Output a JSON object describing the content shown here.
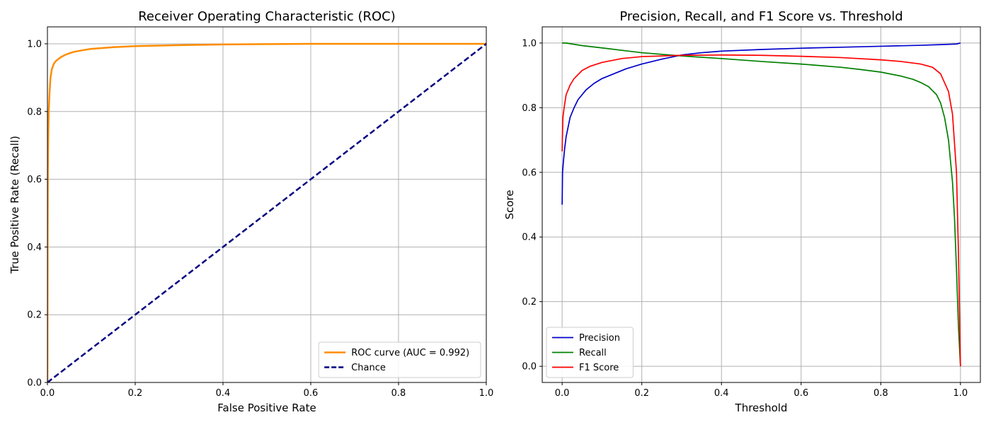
{
  "chart_data": [
    {
      "type": "line",
      "title": "Receiver Operating Characteristic (ROC)",
      "xlabel": "False Positive Rate",
      "ylabel": "True Positive Rate (Recall)",
      "xlim": [
        0,
        1
      ],
      "ylim": [
        0,
        1.05
      ],
      "xticks": [
        0,
        0.2,
        0.4,
        0.6,
        0.8,
        1
      ],
      "xtick_labels": [
        "0.0",
        "0.2",
        "0.4",
        "0.6",
        "0.8",
        "1.0"
      ],
      "yticks": [
        0,
        0.2,
        0.4,
        0.6,
        0.8,
        1
      ],
      "ytick_labels": [
        "0.0",
        "0.2",
        "0.4",
        "0.6",
        "0.8",
        "1.0"
      ],
      "grid": true,
      "legend_position": "lower-right",
      "series": [
        {
          "name": "ROC curve (AUC = 0.992)",
          "color": "#ff8c00",
          "dash": "solid",
          "x": [
            0,
            0.0005,
            0.001,
            0.002,
            0.003,
            0.005,
            0.007,
            0.01,
            0.015,
            0.02,
            0.03,
            0.04,
            0.05,
            0.06,
            0.08,
            0.1,
            0.15,
            0.2,
            0.3,
            0.4,
            0.5,
            0.6,
            0.8,
            1.0
          ],
          "y": [
            0,
            0.45,
            0.62,
            0.74,
            0.8,
            0.86,
            0.9,
            0.925,
            0.942,
            0.95,
            0.96,
            0.967,
            0.972,
            0.976,
            0.981,
            0.985,
            0.99,
            0.993,
            0.996,
            0.998,
            0.999,
            1.0,
            1.0,
            1.0
          ]
        },
        {
          "name": "Chance",
          "color": "#000080",
          "dash": "dashed",
          "x": [
            0,
            1
          ],
          "y": [
            0,
            1
          ]
        }
      ]
    },
    {
      "type": "line",
      "title": "Precision, Recall, and F1 Score vs. Threshold",
      "xlabel": "Threshold",
      "ylabel": "Score",
      "xlim": [
        -0.05,
        1.05
      ],
      "ylim": [
        -0.05,
        1.05
      ],
      "xticks": [
        0,
        0.2,
        0.4,
        0.6,
        0.8,
        1
      ],
      "xtick_labels": [
        "0.0",
        "0.2",
        "0.4",
        "0.6",
        "0.8",
        "1.0"
      ],
      "yticks": [
        0,
        0.2,
        0.4,
        0.6,
        0.8,
        1
      ],
      "ytick_labels": [
        "0.0",
        "0.2",
        "0.4",
        "0.6",
        "0.8",
        "1.0"
      ],
      "grid": true,
      "legend_position": "lower-left",
      "series": [
        {
          "name": "Precision",
          "color": "#0000cc",
          "dash": "solid",
          "x": [
            0,
            0.001,
            0.003,
            0.006,
            0.01,
            0.015,
            0.02,
            0.03,
            0.04,
            0.06,
            0.08,
            0.1,
            0.13,
            0.16,
            0.2,
            0.25,
            0.3,
            0.35,
            0.4,
            0.5,
            0.6,
            0.7,
            0.8,
            0.9,
            0.95,
            0.99,
            1.0
          ],
          "y": [
            0.5,
            0.6,
            0.63,
            0.67,
            0.71,
            0.74,
            0.77,
            0.8,
            0.825,
            0.855,
            0.875,
            0.89,
            0.905,
            0.92,
            0.935,
            0.95,
            0.963,
            0.97,
            0.975,
            0.98,
            0.984,
            0.987,
            0.99,
            0.993,
            0.995,
            0.997,
            1.0
          ]
        },
        {
          "name": "Recall",
          "color": "#008000",
          "dash": "solid",
          "x": [
            0,
            0.01,
            0.05,
            0.1,
            0.2,
            0.3,
            0.4,
            0.5,
            0.6,
            0.7,
            0.75,
            0.8,
            0.85,
            0.88,
            0.9,
            0.92,
            0.94,
            0.95,
            0.96,
            0.97,
            0.98,
            0.985,
            0.99,
            0.995,
            1.0
          ],
          "y": [
            1.0,
            1.0,
            0.992,
            0.985,
            0.97,
            0.96,
            0.952,
            0.943,
            0.935,
            0.925,
            0.918,
            0.91,
            0.898,
            0.888,
            0.878,
            0.865,
            0.84,
            0.815,
            0.77,
            0.7,
            0.57,
            0.46,
            0.3,
            0.12,
            0.0
          ]
        },
        {
          "name": "F1 Score",
          "color": "#ff0000",
          "dash": "solid",
          "x": [
            0,
            0.0005,
            0.002,
            0.005,
            0.01,
            0.02,
            0.03,
            0.05,
            0.07,
            0.1,
            0.15,
            0.2,
            0.3,
            0.4,
            0.5,
            0.6,
            0.7,
            0.8,
            0.85,
            0.9,
            0.93,
            0.95,
            0.97,
            0.98,
            0.99,
            0.995,
            1.0
          ],
          "y": [
            0.665,
            0.7,
            0.77,
            0.8,
            0.84,
            0.87,
            0.89,
            0.915,
            0.928,
            0.94,
            0.952,
            0.958,
            0.962,
            0.963,
            0.962,
            0.959,
            0.955,
            0.948,
            0.943,
            0.935,
            0.925,
            0.905,
            0.85,
            0.78,
            0.6,
            0.35,
            0.0
          ]
        }
      ]
    }
  ]
}
